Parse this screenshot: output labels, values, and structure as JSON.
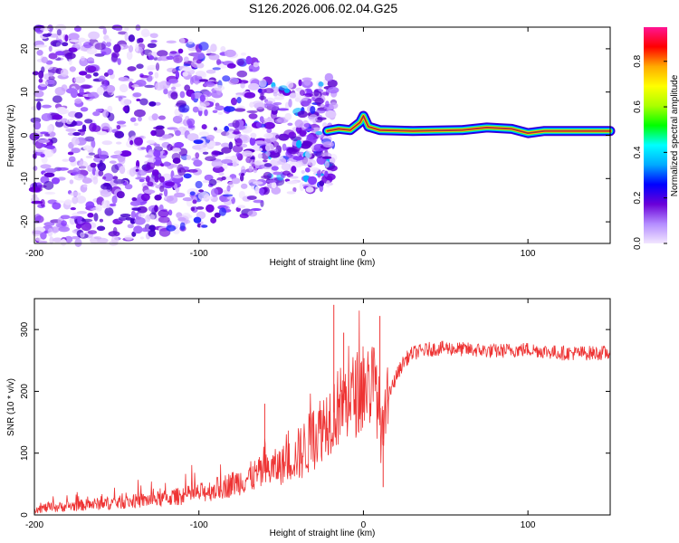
{
  "title": "S126.2026.006.02.04.G25",
  "chart_data": [
    {
      "type": "heatmap",
      "xlabel": "Height of straight line (km)",
      "ylabel": "Frequency (Hz)",
      "xlim": [
        -200,
        150
      ],
      "ylim": [
        -25,
        25
      ],
      "x_ticks": [
        -200,
        -100,
        0,
        100
      ],
      "x_tick_labels": [
        "-200",
        "-100",
        "0",
        "100"
      ],
      "y_ticks": [
        -20,
        -10,
        0,
        10,
        20
      ],
      "y_tick_labels": [
        "-20",
        "-10",
        "0",
        "10",
        "20"
      ],
      "colorbar": {
        "label": "Normalized spectral amplitude",
        "range": [
          0,
          0.95
        ],
        "ticks": [
          0.0,
          0.2,
          0.4,
          0.6,
          0.8
        ],
        "tick_labels": [
          "0.0",
          "0.2",
          "0.4",
          "0.6",
          "0.8"
        ],
        "colors": [
          "#f2e6ff",
          "#b48cff",
          "#6a00d8",
          "#0000ff",
          "#00aaff",
          "#00ffff",
          "#00ff00",
          "#aaff00",
          "#ffff00",
          "#ffaa00",
          "#ff0000",
          "#ff1493"
        ]
      },
      "signal_trace": {
        "description_values_km_hz": [
          [
            -22,
            1
          ],
          [
            -15,
            1.5
          ],
          [
            -8,
            1.2
          ],
          [
            -2,
            3
          ],
          [
            0,
            4.5
          ],
          [
            3,
            2
          ],
          [
            10,
            1.2
          ],
          [
            30,
            1
          ],
          [
            60,
            1.2
          ],
          [
            75,
            1.8
          ],
          [
            90,
            1.5
          ],
          [
            100,
            0.5
          ],
          [
            110,
            1
          ],
          [
            150,
            1
          ]
        ]
      }
    },
    {
      "type": "line",
      "xlabel": "Height of straight line (km)",
      "ylabel": "SNR (10 * v/v)",
      "xlim": [
        -200,
        150
      ],
      "ylim": [
        0,
        350
      ],
      "x_ticks": [
        -200,
        -100,
        0,
        100
      ],
      "x_tick_labels": [
        "-200",
        "-100",
        "0",
        "100"
      ],
      "y_ticks": [
        0,
        100,
        200,
        300
      ],
      "y_tick_labels": [
        "0",
        "100",
        "200",
        "300"
      ],
      "series": [
        {
          "name": "SNR",
          "color": "#ee3333",
          "x": [
            -200,
            -180,
            -160,
            -140,
            -120,
            -100,
            -90,
            -80,
            -70,
            -60,
            -50,
            -40,
            -35,
            -30,
            -25,
            -20,
            -15,
            -10,
            -5,
            0,
            5,
            8,
            10,
            12,
            15,
            20,
            25,
            30,
            40,
            50,
            60,
            80,
            100,
            120,
            150
          ],
          "values": [
            10,
            14,
            18,
            22,
            27,
            35,
            42,
            50,
            60,
            70,
            80,
            95,
            110,
            125,
            145,
            160,
            175,
            185,
            195,
            205,
            215,
            200,
            150,
            120,
            190,
            225,
            250,
            262,
            268,
            270,
            268,
            265,
            268,
            262,
            262
          ]
        }
      ],
      "spikes": [
        [
          -60,
          180
        ],
        [
          -18,
          340
        ],
        [
          10,
          322
        ],
        [
          -12,
          295
        ],
        [
          12,
          45
        ]
      ]
    }
  ]
}
